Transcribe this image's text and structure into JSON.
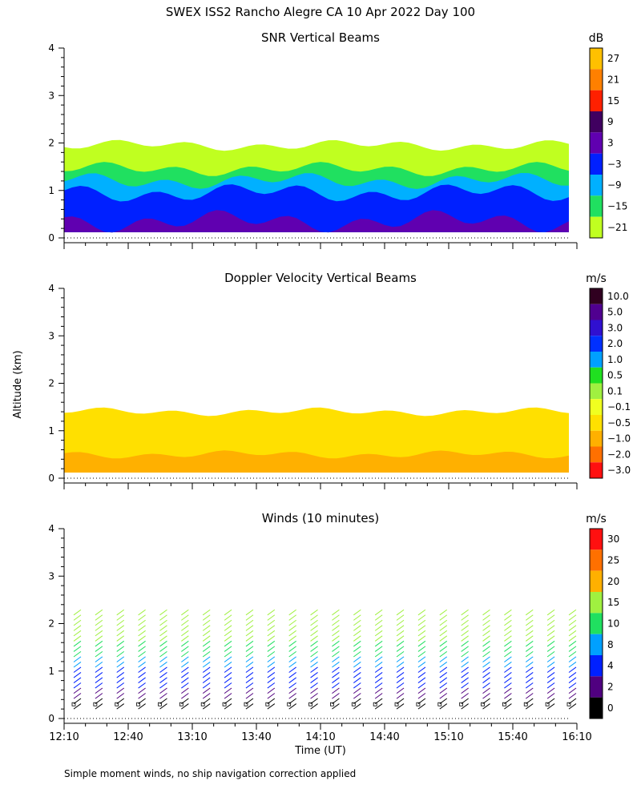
{
  "page": {
    "title": "SWEX ISS2 Rancho Alegre CA  10 Apr 2022 Day 100",
    "footnote": "Simple moment winds, no ship navigation correction applied",
    "ylabel": "Altitude (km)",
    "xlabel": "Time (UT)"
  },
  "chart_data": [
    {
      "id": "snr",
      "type": "heatmap",
      "title": "SNR Vertical Beams",
      "unit": "dB",
      "y_ticks": [
        "0",
        "1",
        "2",
        "3",
        "4"
      ],
      "ylim": [
        0,
        4
      ],
      "colorbar": {
        "labels": [
          "27",
          "21",
          "15",
          "9",
          "3",
          "−3",
          "−9",
          "−15",
          "−21"
        ],
        "colors": [
          "#ffc000",
          "#ff8000",
          "#ff2000",
          "#400060",
          "#6000b0",
          "#0020ff",
          "#00b0ff",
          "#20e060",
          "#c0ff20"
        ]
      },
      "layers": [
        {
          "name": "weak",
          "color": "#c0ff20",
          "top_km": 1.95
        },
        {
          "name": "low",
          "color": "#20e060",
          "top_km": 1.45
        },
        {
          "name": "mid",
          "color": "#00b0ff",
          "top_km": 1.2
        },
        {
          "name": "high",
          "color": "#0020ff",
          "top_km": 0.95
        },
        {
          "name": "strong",
          "color": "#6000b0",
          "top_km": 0.35
        }
      ]
    },
    {
      "id": "doppler",
      "type": "heatmap",
      "title": "Doppler Velocity Vertical Beams",
      "unit": "m/s",
      "y_ticks": [
        "0",
        "1",
        "2",
        "3",
        "4"
      ],
      "ylim": [
        0,
        4
      ],
      "colorbar": {
        "labels": [
          "10.0",
          "5.0",
          "3.0",
          "2.0",
          "1.0",
          "0.5",
          "0.1",
          "−0.1",
          "−0.5",
          "−1.0",
          "−2.0",
          "−3.0"
        ],
        "colors": [
          "#300020",
          "#500090",
          "#3010d0",
          "#0030ff",
          "#00a0ff",
          "#20e020",
          "#a0f040",
          "#f0ff20",
          "#ffe000",
          "#ffb000",
          "#ff7000",
          "#ff1010"
        ]
      },
      "layers": [
        {
          "name": "main",
          "color": "#ffe000",
          "top_km": 1.4
        },
        {
          "name": "lower",
          "color": "#ffb000",
          "top_km": 0.5
        }
      ]
    },
    {
      "id": "winds",
      "type": "scatter",
      "title": "Winds (10 minutes)",
      "unit": "m/s",
      "y_ticks": [
        "0",
        "1",
        "2",
        "3",
        "4"
      ],
      "ylim": [
        0,
        4
      ],
      "x_ticks": [
        "12:10",
        "12:40",
        "13:10",
        "13:40",
        "14:10",
        "14:40",
        "15:10",
        "15:40",
        "16:10"
      ],
      "colorbar": {
        "labels": [
          "30",
          "25",
          "20",
          "15",
          "10",
          "8",
          "4",
          "2",
          "0"
        ],
        "colors": [
          "#ff1010",
          "#ff7000",
          "#ffb000",
          "#a0f040",
          "#20e060",
          "#00a0ff",
          "#0020ff",
          "#500080",
          "#000000"
        ]
      },
      "profiles_count": 24
    }
  ]
}
